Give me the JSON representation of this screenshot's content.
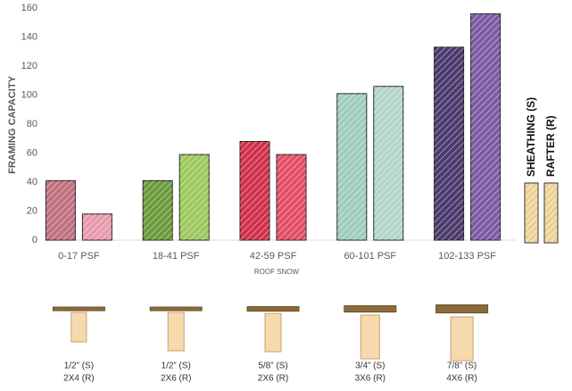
{
  "chart_data": {
    "type": "bar",
    "y_label": "FRAMING CAPACITY",
    "x_label": "ROOF SNOW",
    "categories": [
      "0-17 PSF",
      "18-41 PSF",
      "42-59 PSF",
      "60-101 PSF",
      "102-133 PSF"
    ],
    "series": [
      {
        "name": "SHEATHING (S)",
        "color": "#f3dca8",
        "bar_colors": [
          "#c0707f",
          "#6a9a3a",
          "#d0304a",
          "#9fcdbd",
          "#4b3a6b"
        ],
        "values": [
          41,
          41,
          68,
          101,
          133
        ]
      },
      {
        "name": "RAFTER (R)",
        "color": "#f3dca8",
        "bar_colors": [
          "#e89aac",
          "#9dc85e",
          "#e44c66",
          "#b3d6c8",
          "#7c5ba2"
        ],
        "values": [
          18,
          59,
          59,
          106,
          156
        ]
      }
    ],
    "ylim": [
      0,
      160
    ],
    "yticks": [
      0,
      20,
      40,
      60,
      80,
      100,
      120,
      140,
      160
    ],
    "grid": false,
    "legend": "right",
    "boards": [
      {
        "sheathing": "1/2” (S)",
        "rafter": "2X4 (R)"
      },
      {
        "sheathing": "1/2” (S)",
        "rafter": "2X6 (R)"
      },
      {
        "sheathing": "5/8” (S)",
        "rafter": "2X6 (R)"
      },
      {
        "sheathing": "3/4” (S)",
        "rafter": "3X6 (R)"
      },
      {
        "sheathing": "7/8” (S)",
        "rafter": "4X6 (R)"
      }
    ]
  }
}
